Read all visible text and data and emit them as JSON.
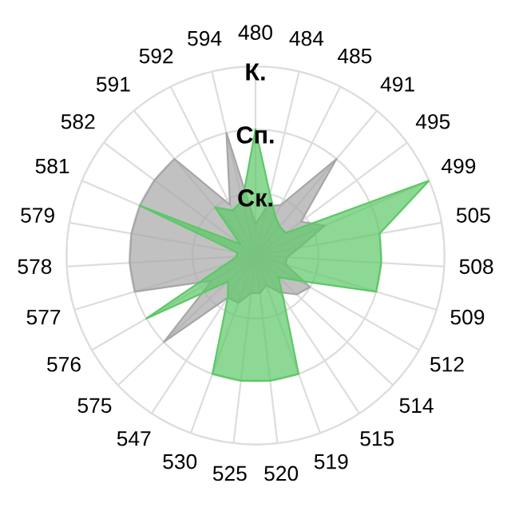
{
  "chart_data": {
    "type": "radar",
    "categories": [
      "480",
      "484",
      "485",
      "491",
      "495",
      "499",
      "505",
      "508",
      "509",
      "512",
      "514",
      "515",
      "519",
      "520",
      "525",
      "530",
      "547",
      "575",
      "576",
      "577",
      "578",
      "579",
      "581",
      "582",
      "591",
      "592",
      "594"
    ],
    "series": [
      {
        "color": "#a6a6a6",
        "values": [
          0.5,
          0.8,
          0.9,
          2.0,
          0.9,
          1.2,
          0.7,
          0.5,
          0.5,
          1.0,
          0.9,
          0.7,
          0.5,
          0.6,
          0.6,
          0.8,
          0.8,
          2.0,
          0.8,
          2.0,
          2.0,
          2.0,
          2.0,
          2.0,
          2.0,
          0.9,
          2.0
        ]
      },
      {
        "color": "#5cc866",
        "values": [
          2.0,
          1.0,
          0.7,
          0.6,
          0.6,
          3.0,
          2.0,
          2.0,
          2.0,
          0.8,
          0.5,
          0.8,
          2.0,
          2.0,
          2.0,
          2.0,
          0.8,
          0.6,
          2.0,
          0.5,
          0.3,
          0.3,
          2.0,
          0.3,
          1.0,
          0.8,
          0.9
        ]
      }
    ],
    "ylim": [
      0,
      3
    ],
    "yticks": [
      {
        "value": 1,
        "label": "Ск."
      },
      {
        "value": 2,
        "label": "Сп."
      },
      {
        "value": 3,
        "label": "К."
      }
    ],
    "grid": true
  }
}
